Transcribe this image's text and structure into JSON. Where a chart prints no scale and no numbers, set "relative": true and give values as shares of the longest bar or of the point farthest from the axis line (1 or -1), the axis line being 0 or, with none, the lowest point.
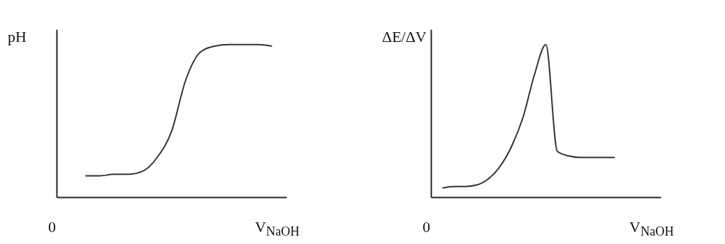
{
  "chart_data": [
    {
      "type": "line",
      "ylabel": "pH",
      "xlabel": "V$_{NaOH}$",
      "relative": true,
      "annotations": [
        "0"
      ],
      "color": "#333333",
      "categories": [
        null,
        null,
        null,
        null,
        null,
        null,
        null,
        null,
        null,
        null,
        null,
        null,
        null,
        null,
        null,
        null,
        null
      ],
      "values": [
        null,
        null,
        0.14,
        0.14,
        0.15,
        0.15,
        0.17,
        0.26,
        0.43,
        0.77,
        0.95,
        0.99,
        1.0,
        1.0,
        1.0,
        0.99,
        null
      ]
    },
    {
      "type": "line",
      "ylabel": "ΔE/ΔV",
      "xlabel": "V$_{NaOH}$",
      "relative": true,
      "annotations": [
        "0"
      ],
      "color": "#333333",
      "categories": [
        null,
        null,
        null,
        null,
        null,
        null,
        null,
        null,
        null,
        null,
        null,
        null,
        null,
        null,
        null,
        null,
        null,
        null,
        null,
        null,
        null
      ],
      "values": [
        null,
        0.06,
        0.07,
        0.07,
        0.08,
        0.12,
        0.2,
        0.33,
        0.52,
        0.8,
        1.0,
        0.3,
        0.27,
        0.26,
        0.26,
        0.26,
        0.26,
        null,
        null,
        null,
        null
      ]
    }
  ]
}
